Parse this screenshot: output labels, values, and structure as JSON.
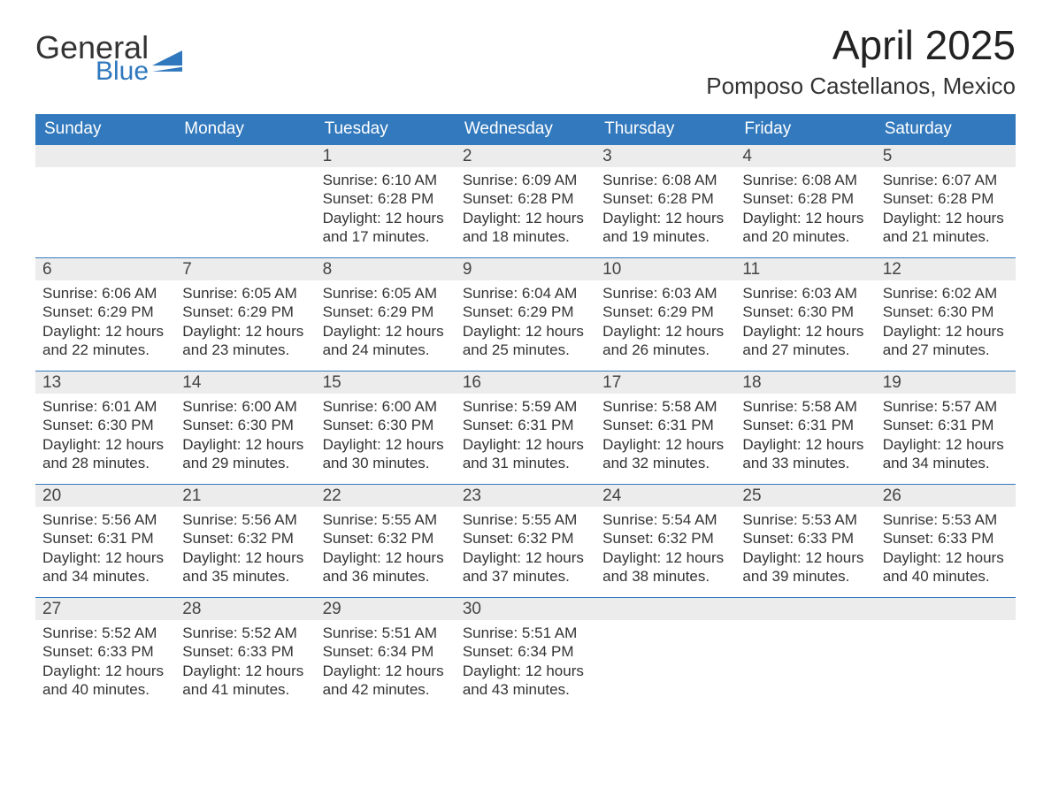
{
  "brand": {
    "word1": "General",
    "word2": "Blue"
  },
  "header": {
    "month_year": "April 2025",
    "location": "Pomposo Castellanos, Mexico"
  },
  "colors": {
    "header_bg": "#3279bd",
    "header_text": "#ffffff",
    "daynum_bg": "#ececec",
    "daynum_border": "#3279bd",
    "body_text": "#333333",
    "logo_blue": "#2f78bd",
    "page_bg": "#ffffff"
  },
  "font": {
    "month_year_size": 46,
    "location_size": 26,
    "weekday_size": 19,
    "daynum_size": 19,
    "body_size": 17
  },
  "weekdays": [
    "Sunday",
    "Monday",
    "Tuesday",
    "Wednesday",
    "Thursday",
    "Friday",
    "Saturday"
  ],
  "weeks": [
    [
      null,
      null,
      {
        "n": "1",
        "sr": "6:10 AM",
        "ss": "6:28 PM",
        "dl": "12 hours and 17 minutes."
      },
      {
        "n": "2",
        "sr": "6:09 AM",
        "ss": "6:28 PM",
        "dl": "12 hours and 18 minutes."
      },
      {
        "n": "3",
        "sr": "6:08 AM",
        "ss": "6:28 PM",
        "dl": "12 hours and 19 minutes."
      },
      {
        "n": "4",
        "sr": "6:08 AM",
        "ss": "6:28 PM",
        "dl": "12 hours and 20 minutes."
      },
      {
        "n": "5",
        "sr": "6:07 AM",
        "ss": "6:28 PM",
        "dl": "12 hours and 21 minutes."
      }
    ],
    [
      {
        "n": "6",
        "sr": "6:06 AM",
        "ss": "6:29 PM",
        "dl": "12 hours and 22 minutes."
      },
      {
        "n": "7",
        "sr": "6:05 AM",
        "ss": "6:29 PM",
        "dl": "12 hours and 23 minutes."
      },
      {
        "n": "8",
        "sr": "6:05 AM",
        "ss": "6:29 PM",
        "dl": "12 hours and 24 minutes."
      },
      {
        "n": "9",
        "sr": "6:04 AM",
        "ss": "6:29 PM",
        "dl": "12 hours and 25 minutes."
      },
      {
        "n": "10",
        "sr": "6:03 AM",
        "ss": "6:29 PM",
        "dl": "12 hours and 26 minutes."
      },
      {
        "n": "11",
        "sr": "6:03 AM",
        "ss": "6:30 PM",
        "dl": "12 hours and 27 minutes."
      },
      {
        "n": "12",
        "sr": "6:02 AM",
        "ss": "6:30 PM",
        "dl": "12 hours and 27 minutes."
      }
    ],
    [
      {
        "n": "13",
        "sr": "6:01 AM",
        "ss": "6:30 PM",
        "dl": "12 hours and 28 minutes."
      },
      {
        "n": "14",
        "sr": "6:00 AM",
        "ss": "6:30 PM",
        "dl": "12 hours and 29 minutes."
      },
      {
        "n": "15",
        "sr": "6:00 AM",
        "ss": "6:30 PM",
        "dl": "12 hours and 30 minutes."
      },
      {
        "n": "16",
        "sr": "5:59 AM",
        "ss": "6:31 PM",
        "dl": "12 hours and 31 minutes."
      },
      {
        "n": "17",
        "sr": "5:58 AM",
        "ss": "6:31 PM",
        "dl": "12 hours and 32 minutes."
      },
      {
        "n": "18",
        "sr": "5:58 AM",
        "ss": "6:31 PM",
        "dl": "12 hours and 33 minutes."
      },
      {
        "n": "19",
        "sr": "5:57 AM",
        "ss": "6:31 PM",
        "dl": "12 hours and 34 minutes."
      }
    ],
    [
      {
        "n": "20",
        "sr": "5:56 AM",
        "ss": "6:31 PM",
        "dl": "12 hours and 34 minutes."
      },
      {
        "n": "21",
        "sr": "5:56 AM",
        "ss": "6:32 PM",
        "dl": "12 hours and 35 minutes."
      },
      {
        "n": "22",
        "sr": "5:55 AM",
        "ss": "6:32 PM",
        "dl": "12 hours and 36 minutes."
      },
      {
        "n": "23",
        "sr": "5:55 AM",
        "ss": "6:32 PM",
        "dl": "12 hours and 37 minutes."
      },
      {
        "n": "24",
        "sr": "5:54 AM",
        "ss": "6:32 PM",
        "dl": "12 hours and 38 minutes."
      },
      {
        "n": "25",
        "sr": "5:53 AM",
        "ss": "6:33 PM",
        "dl": "12 hours and 39 minutes."
      },
      {
        "n": "26",
        "sr": "5:53 AM",
        "ss": "6:33 PM",
        "dl": "12 hours and 40 minutes."
      }
    ],
    [
      {
        "n": "27",
        "sr": "5:52 AM",
        "ss": "6:33 PM",
        "dl": "12 hours and 40 minutes."
      },
      {
        "n": "28",
        "sr": "5:52 AM",
        "ss": "6:33 PM",
        "dl": "12 hours and 41 minutes."
      },
      {
        "n": "29",
        "sr": "5:51 AM",
        "ss": "6:34 PM",
        "dl": "12 hours and 42 minutes."
      },
      {
        "n": "30",
        "sr": "5:51 AM",
        "ss": "6:34 PM",
        "dl": "12 hours and 43 minutes."
      },
      null,
      null,
      null
    ]
  ],
  "labels": {
    "sunrise": "Sunrise: ",
    "sunset": "Sunset: ",
    "daylight": "Daylight: "
  }
}
